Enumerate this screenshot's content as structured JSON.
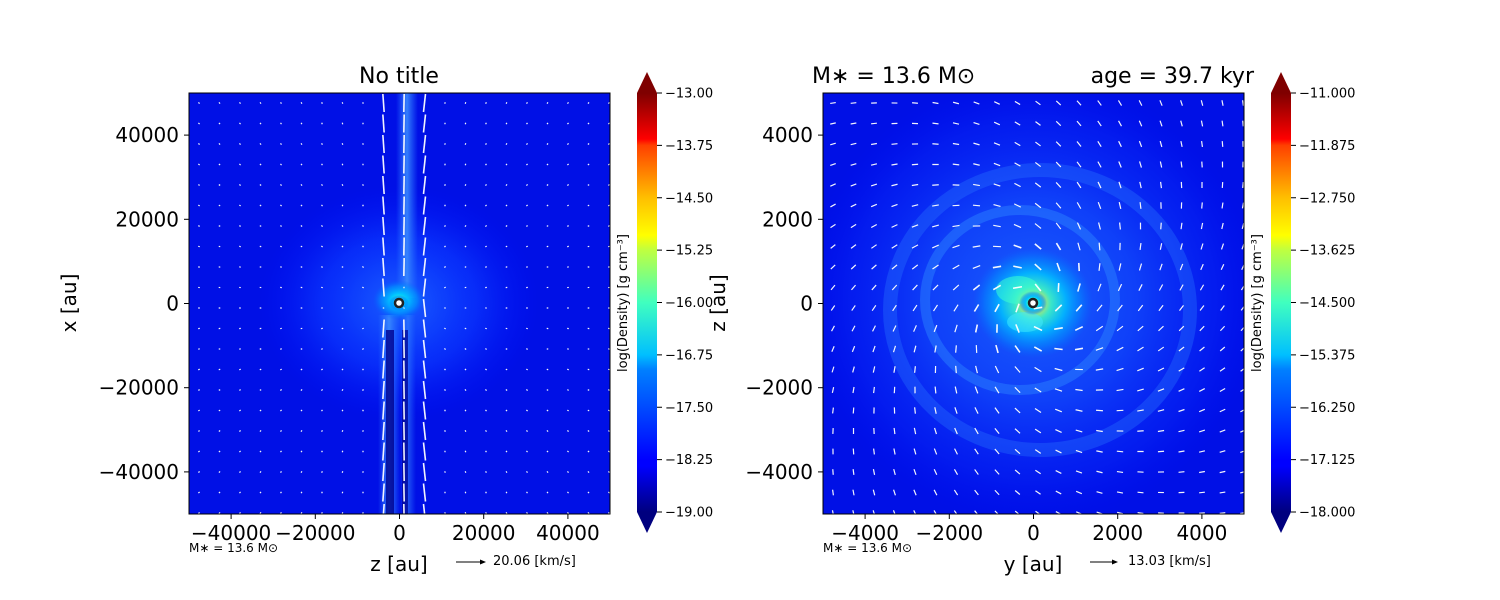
{
  "chart_data": [
    {
      "type": "heatmap",
      "title": "No title",
      "xlabel": "z [au]",
      "ylabel": "x [au]",
      "xlim": [
        -50000,
        50000
      ],
      "ylim": [
        -50000,
        50000
      ],
      "xticks": [
        -40000,
        -20000,
        0,
        20000,
        40000
      ],
      "yticks": [
        -40000,
        -20000,
        0,
        20000,
        40000
      ],
      "xtick_labels": [
        "−40000",
        "−20000",
        "0",
        "20000",
        "40000"
      ],
      "ytick_labels": [
        "−40000",
        "−20000",
        "0",
        "20000",
        "40000"
      ],
      "colorbar": {
        "label": "log(Density) [g cm⁻³]",
        "range": [
          -19.0,
          -13.0
        ],
        "ticks": [
          -13.0,
          -13.75,
          -14.5,
          -15.25,
          -16.0,
          -16.75,
          -17.5,
          -18.25,
          -19.0
        ],
        "tick_labels": [
          "−13.00",
          "−13.75",
          "−14.50",
          "−15.25",
          "−16.00",
          "−16.75",
          "−17.50",
          "−18.25",
          "−19.00"
        ]
      },
      "annotation": "M∗ = 13.6 M⊙",
      "vector_key": "20.06 [km/s]",
      "sink_position": [
        0,
        0
      ],
      "morphology": "bipolar outflow along z axis",
      "grid": false
    },
    {
      "type": "heatmap",
      "title": "",
      "title_left": "M∗ = 13.6 M⊙",
      "title_right": "age = 39.7 kyr",
      "xlabel": "y [au]",
      "ylabel": "z [au]",
      "xlim": [
        -5000,
        5000
      ],
      "ylim": [
        -5000,
        5000
      ],
      "xticks": [
        -4000,
        -2000,
        0,
        2000,
        4000
      ],
      "yticks": [
        -4000,
        -2000,
        0,
        2000,
        4000
      ],
      "xtick_labels": [
        "−4000",
        "−2000",
        "0",
        "2000",
        "4000"
      ],
      "ytick_labels": [
        "−4000",
        "−2000",
        "0",
        "2000",
        "4000"
      ],
      "colorbar": {
        "label": "log(Density) [g cm⁻³]",
        "range": [
          -18.0,
          -11.0
        ],
        "ticks": [
          -11.0,
          -11.875,
          -12.75,
          -13.625,
          -14.5,
          -15.375,
          -16.25,
          -17.125,
          -18.0
        ],
        "tick_labels": [
          "−11.000",
          "−11.875",
          "−12.750",
          "−13.625",
          "−14.500",
          "−15.375",
          "−16.250",
          "−17.125",
          "−18.000"
        ]
      },
      "annotation": "M∗ = 13.6 M⊙",
      "vector_key": "13.03 [km/s]",
      "sink_position": [
        0,
        0
      ],
      "morphology": "face-on rotating disk",
      "grid": false
    }
  ]
}
